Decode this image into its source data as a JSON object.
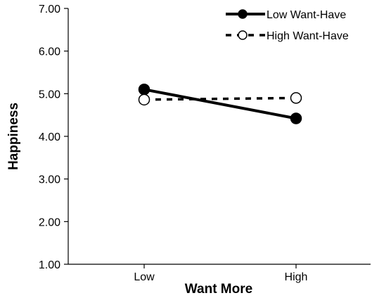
{
  "chart_data": {
    "type": "line",
    "title": "",
    "xlabel": "Want More",
    "ylabel": "Happiness",
    "categories": [
      "Low",
      "High"
    ],
    "ylim": [
      1.0,
      7.0
    ],
    "yticks": [
      "1.00",
      "2.00",
      "3.00",
      "4.00",
      "5.00",
      "6.00",
      "7.00"
    ],
    "grid": false,
    "legend_position": "top-right",
    "series": [
      {
        "name": "Low Want-Have",
        "values": [
          5.1,
          4.42
        ],
        "style": "solid",
        "marker": "filled-circle",
        "color": "#000000"
      },
      {
        "name": "High Want-Have",
        "values": [
          4.86,
          4.9
        ],
        "style": "dashed",
        "marker": "open-circle",
        "color": "#000000"
      }
    ]
  }
}
